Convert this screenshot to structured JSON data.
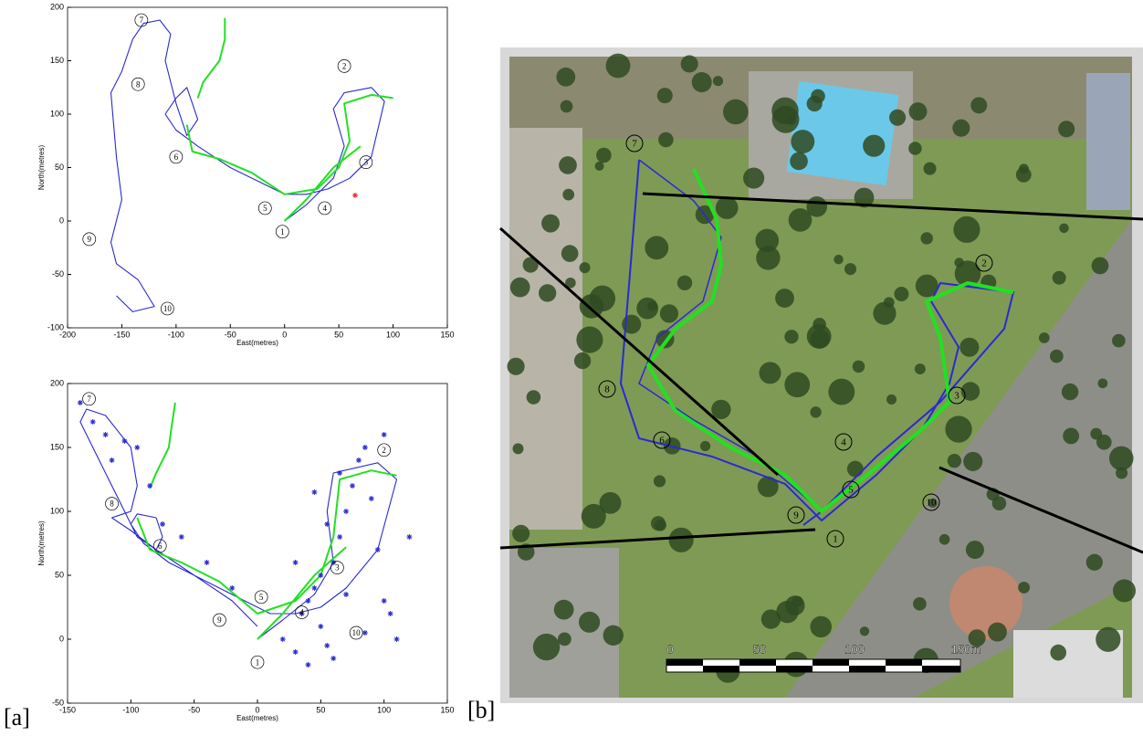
{
  "chart_data": [
    {
      "type": "line",
      "xlabel": "East(metres)",
      "ylabel": "North(metres)",
      "xlim": [
        -200,
        150
      ],
      "xticks": [
        -200,
        -150,
        -100,
        -50,
        0,
        50,
        100,
        150
      ],
      "ylim": [
        -100,
        200
      ],
      "yticks": [
        -100,
        -50,
        0,
        50,
        100,
        150,
        200
      ],
      "series": [
        {
          "color": "#2a2ad0",
          "x": [
            0,
            20,
            45,
            55,
            45,
            55,
            80,
            92,
            80,
            60,
            40,
            20,
            0,
            -20,
            -50,
            -80,
            -100,
            -110,
            -100,
            -90,
            -85,
            -80,
            -90,
            -100,
            -110,
            -105,
            -115,
            -130,
            -140,
            -150,
            -160,
            -155,
            -150,
            -160,
            -155,
            -135,
            -120,
            -140,
            -155
          ],
          "values": [
            0,
            15,
            40,
            70,
            105,
            120,
            125,
            112,
            60,
            40,
            30,
            25,
            25,
            35,
            50,
            70,
            85,
            100,
            115,
            125,
            110,
            95,
            80,
            110,
            150,
            175,
            188,
            185,
            170,
            140,
            120,
            60,
            20,
            -20,
            -40,
            -55,
            -80,
            -85,
            -70
          ]
        },
        {
          "color": "#22e022",
          "x": [
            -90,
            -85,
            -60,
            -30,
            0,
            30,
            50,
            60,
            55,
            80,
            100,
            null,
            -55,
            -55,
            -60,
            -75,
            -80,
            null,
            0,
            20,
            45,
            70
          ],
          "values": [
            90,
            65,
            58,
            45,
            25,
            30,
            50,
            75,
            110,
            118,
            115,
            null,
            190,
            170,
            150,
            130,
            115,
            null,
            0,
            20,
            50,
            70
          ]
        },
        {
          "type": "scatter",
          "color": "#e03030",
          "x": [
            65
          ],
          "values": [
            24
          ]
        }
      ],
      "annotations": [
        {
          "text": "7",
          "x": -132,
          "y": 188
        },
        {
          "text": "2",
          "x": 55,
          "y": 145
        },
        {
          "text": "8",
          "x": -135,
          "y": 128
        },
        {
          "text": "6",
          "x": -100,
          "y": 60
        },
        {
          "text": "3",
          "x": 75,
          "y": 55
        },
        {
          "text": "5",
          "x": -18,
          "y": 12
        },
        {
          "text": "4",
          "x": 37,
          "y": 12
        },
        {
          "text": "1",
          "x": -2,
          "y": -10
        },
        {
          "text": "9",
          "x": -180,
          "y": -17
        },
        {
          "text": "10",
          "x": -108,
          "y": -82
        }
      ]
    },
    {
      "type": "line",
      "xlabel": "East(metres)",
      "ylabel": "North(metres)",
      "xlim": [
        -150,
        150
      ],
      "xticks": [
        -150,
        -100,
        -50,
        0,
        50,
        100,
        150
      ],
      "ylim": [
        -50,
        200
      ],
      "yticks": [
        -50,
        0,
        50,
        100,
        150,
        200
      ],
      "series": [
        {
          "color": "#2a2ad0",
          "x": [
            0,
            20,
            45,
            60,
            55,
            60,
            95,
            110,
            95,
            70,
            50,
            30,
            10,
            -10,
            -40,
            -70,
            -90,
            -100,
            -95,
            -80,
            -75,
            -80,
            -95,
            -110,
            -130,
            -140,
            -135,
            -120,
            -100,
            -95,
            -100,
            -115,
            -100,
            -80,
            -50,
            -20,
            0
          ],
          "values": [
            0,
            15,
            35,
            60,
            100,
            130,
            138,
            125,
            70,
            40,
            25,
            20,
            20,
            30,
            45,
            60,
            75,
            90,
            98,
            95,
            80,
            70,
            80,
            110,
            150,
            170,
            180,
            175,
            150,
            120,
            100,
            95,
            85,
            70,
            50,
            30,
            10
          ]
        },
        {
          "color": "#22e022",
          "x": [
            -95,
            -85,
            -60,
            -30,
            0,
            30,
            50,
            60,
            65,
            90,
            110,
            null,
            -65,
            -68,
            -70,
            -80,
            -85,
            null,
            0,
            20,
            45,
            70
          ],
          "values": [
            95,
            70,
            60,
            45,
            20,
            30,
            50,
            80,
            125,
            132,
            128,
            null,
            185,
            165,
            150,
            130,
            118,
            null,
            0,
            20,
            50,
            72
          ]
        },
        {
          "type": "scatter",
          "color": "#2a2ad0",
          "x": [
            -140,
            -130,
            -120,
            -115,
            -105,
            -95,
            -85,
            -75,
            -60,
            -40,
            -20,
            20,
            30,
            35,
            40,
            45,
            50,
            55,
            60,
            65,
            70,
            75,
            80,
            85,
            90,
            95,
            100,
            105,
            110,
            120,
            40,
            50,
            60,
            30,
            70,
            85,
            45,
            55,
            65,
            100
          ],
          "values": [
            185,
            170,
            160,
            140,
            155,
            150,
            120,
            90,
            80,
            60,
            40,
            0,
            -10,
            20,
            30,
            40,
            10,
            -5,
            60,
            80,
            100,
            120,
            140,
            150,
            110,
            70,
            30,
            20,
            0,
            80,
            -20,
            50,
            -15,
            60,
            35,
            5,
            115,
            90,
            130,
            160
          ]
        }
      ],
      "annotations": [
        {
          "text": "7",
          "x": -133,
          "y": 188
        },
        {
          "text": "2",
          "x": 100,
          "y": 148
        },
        {
          "text": "8",
          "x": -115,
          "y": 106
        },
        {
          "text": "6",
          "x": -77,
          "y": 73
        },
        {
          "text": "3",
          "x": 63,
          "y": 56
        },
        {
          "text": "5",
          "x": 3,
          "y": 33
        },
        {
          "text": "4",
          "x": 35,
          "y": 21
        },
        {
          "text": "9",
          "x": -30,
          "y": 15
        },
        {
          "text": "1",
          "x": 0,
          "y": -18
        },
        {
          "text": "10",
          "x": 78,
          "y": 5
        }
      ]
    }
  ],
  "figure_labels": [
    "[a]",
    "[b]"
  ],
  "photo": {
    "waypoints": [
      "7",
      "2",
      "8",
      "6",
      "3",
      "4",
      "5",
      "9",
      "1",
      "10"
    ],
    "scale_labels": [
      "0",
      "50",
      "100",
      "150m"
    ]
  }
}
